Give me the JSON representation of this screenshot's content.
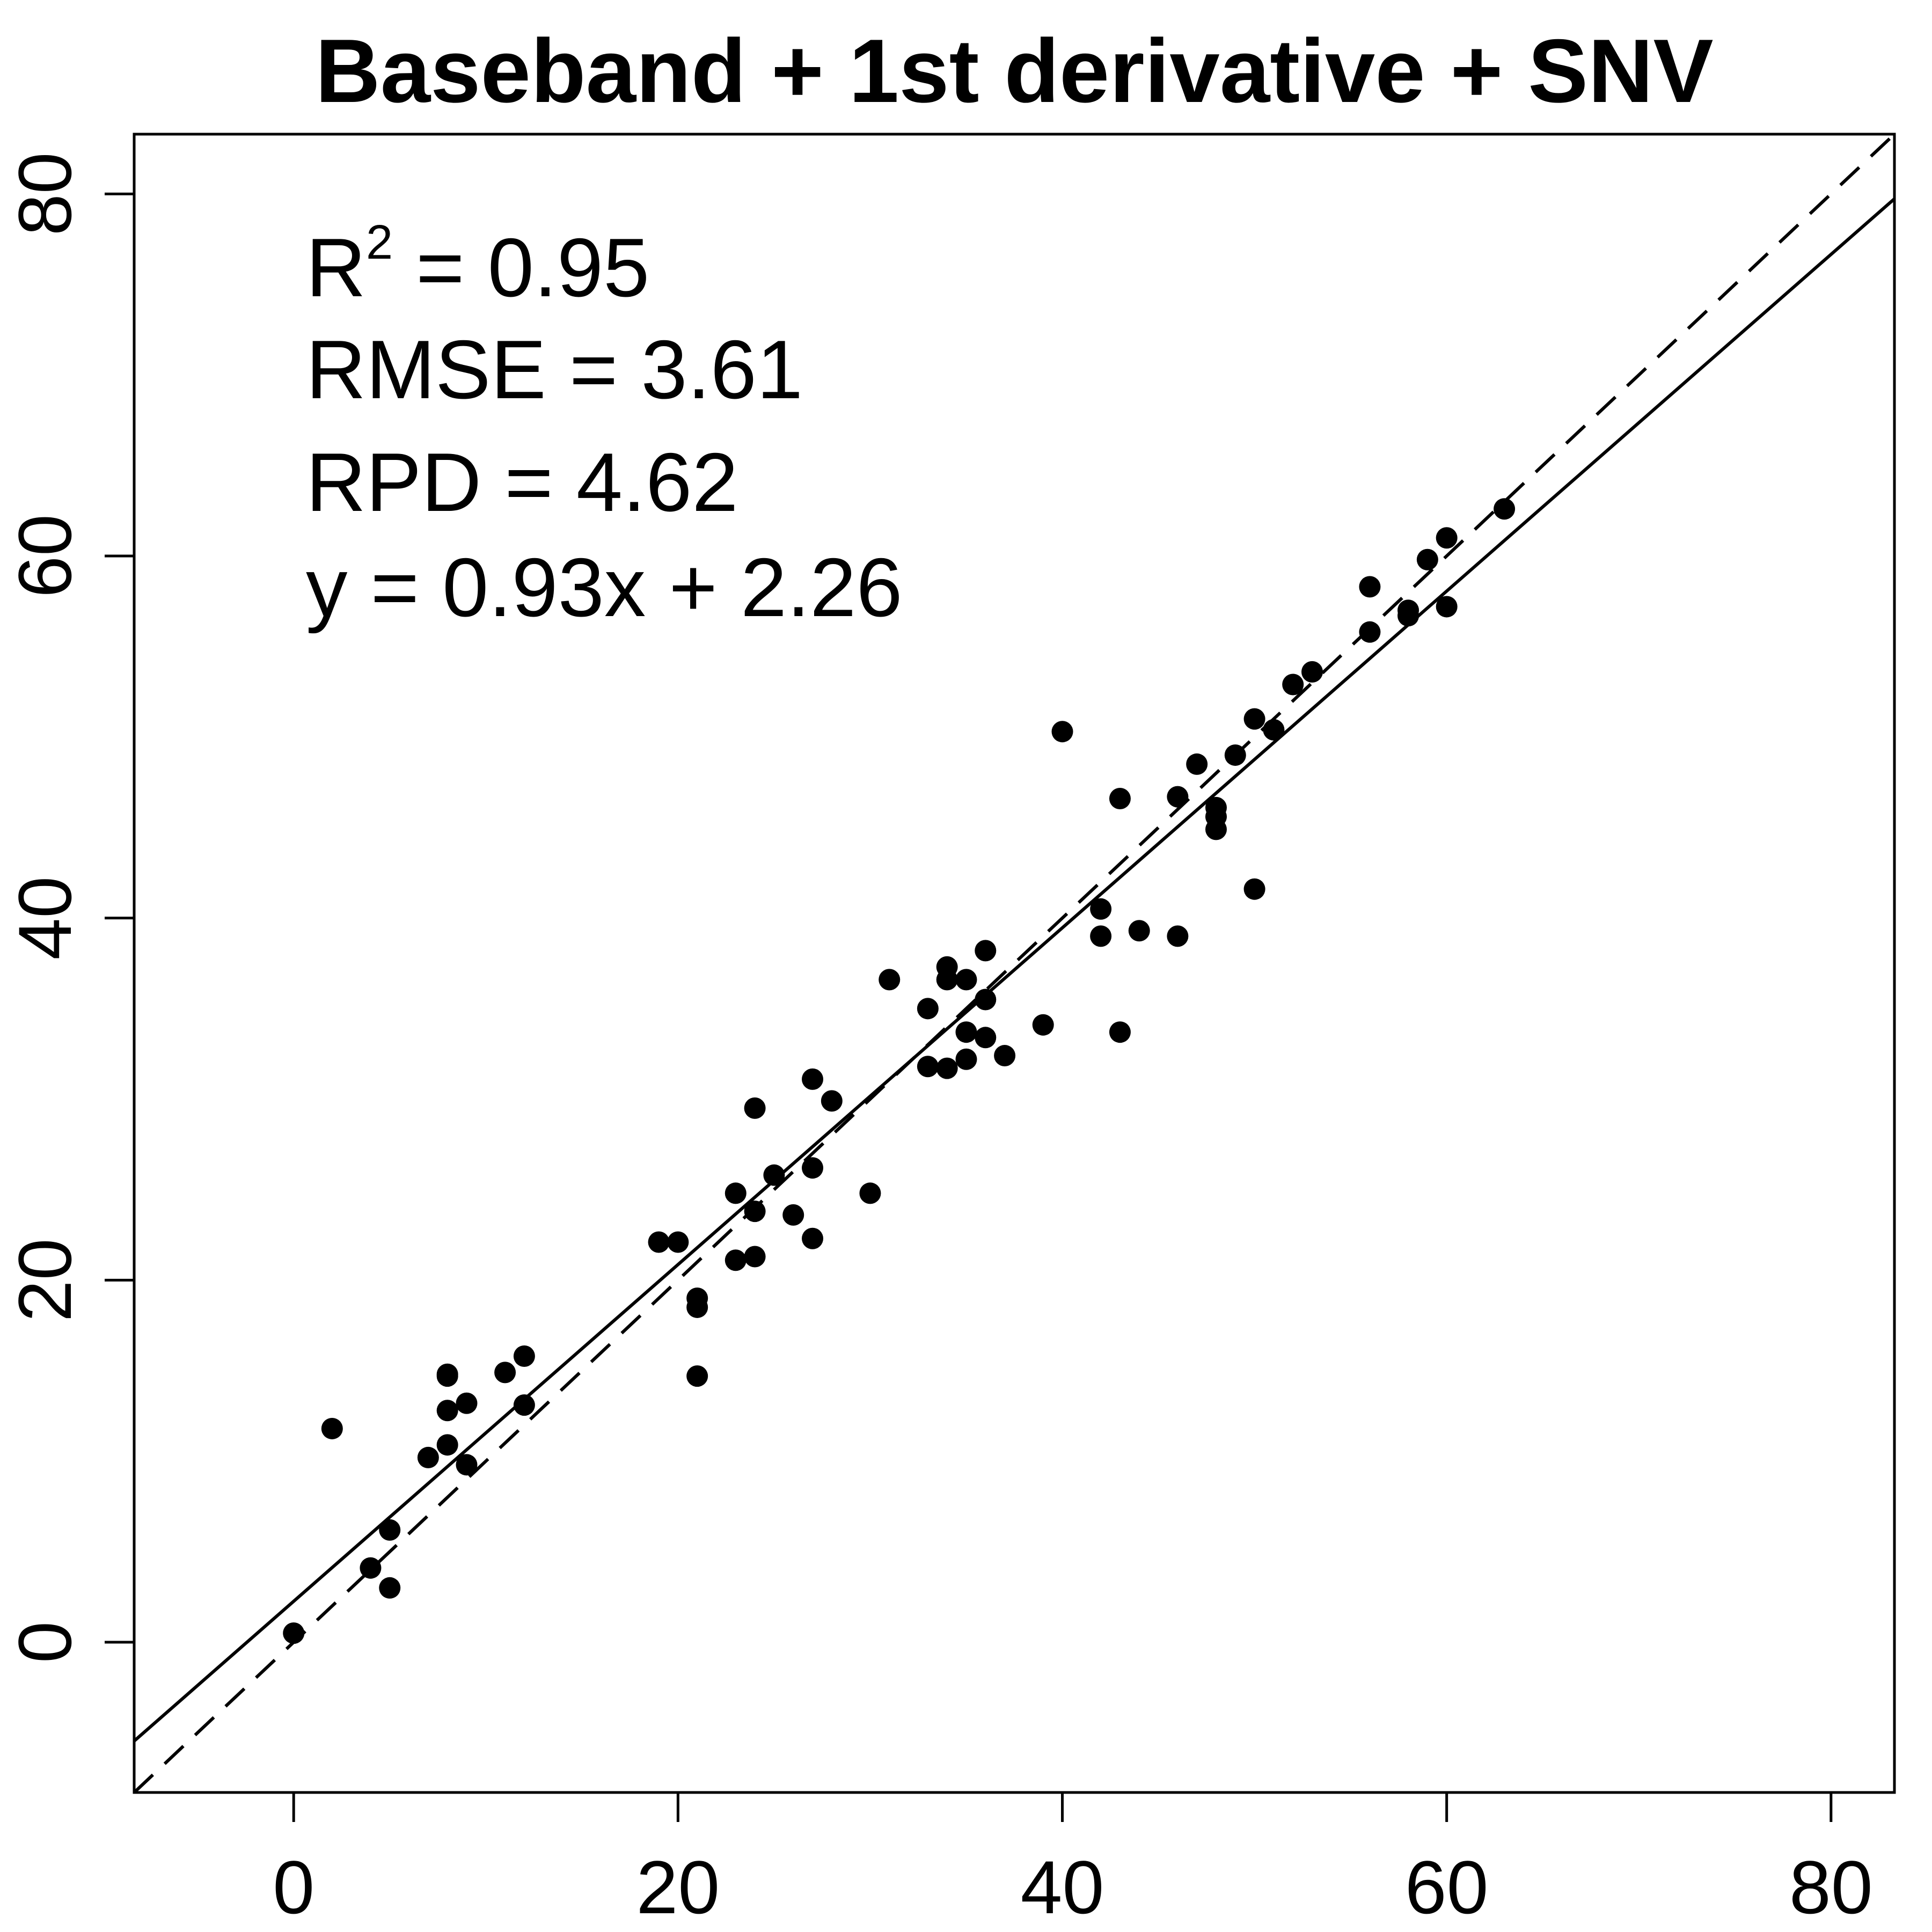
{
  "chart_data": {
    "type": "scatter",
    "title": "Baseband + 1st derivative + SNV",
    "xlabel": "",
    "ylabel": "",
    "xlim": [
      -8.3,
      83.3
    ],
    "ylim": [
      -8.3,
      83.3
    ],
    "x_ticks": [
      0,
      20,
      40,
      60,
      80
    ],
    "y_ticks": [
      0,
      20,
      40,
      60,
      80
    ],
    "x_tick_labels": [
      "0",
      "20",
      "40",
      "60",
      "80"
    ],
    "y_tick_labels": [
      "0",
      "20",
      "40",
      "60",
      "80"
    ],
    "grid": false,
    "legend": "none",
    "annotations": {
      "r2_prefix": "R",
      "r2_sup": "2",
      "r2_rest": " = 0.95",
      "rmse": "RMSE = 3.61",
      "rpd": "RPD = 4.62",
      "equation": "y = 0.93x + 2.26"
    },
    "reference_lines": [
      {
        "kind": "1:1 line",
        "style": "dashed",
        "slope": 1,
        "intercept": 0
      },
      {
        "kind": "fit line",
        "style": "solid",
        "slope": 0.93,
        "intercept": 2.26
      }
    ],
    "series": [
      {
        "x": [
          0,
          2,
          4,
          5,
          5,
          7,
          8,
          8,
          8,
          8,
          9,
          9,
          11,
          12,
          12,
          19,
          20,
          21,
          21,
          21,
          23,
          23,
          24,
          24,
          24,
          25,
          26,
          27,
          27,
          27,
          28,
          30,
          31,
          33,
          33,
          34,
          34,
          34,
          35,
          35,
          35,
          36,
          36,
          36,
          37,
          39,
          40,
          42,
          42,
          43,
          43,
          44,
          46,
          46,
          47,
          48,
          48,
          48,
          49,
          50,
          50,
          51,
          52,
          53,
          56,
          56,
          58,
          58,
          59,
          60,
          60,
          63
        ],
        "y": [
          0.5,
          11.8,
          4.1,
          6.2,
          3,
          10.2,
          14.8,
          12.8,
          10.9,
          14.7,
          9.8,
          13.2,
          14.9,
          15.8,
          13.1,
          22.1,
          22.1,
          19,
          18.5,
          14.7,
          24.8,
          21.1,
          23.8,
          21.3,
          29.5,
          25.8,
          23.6,
          31.1,
          26.2,
          22.3,
          29.9,
          24.8,
          36.6,
          35,
          31.8,
          37.3,
          36.6,
          31.7,
          36.6,
          33.7,
          32.2,
          38.2,
          35.5,
          33.4,
          32.4,
          34.1,
          50.3,
          40.5,
          39,
          46.6,
          33.7,
          39.3,
          46.7,
          39,
          48.5,
          46.1,
          45.6,
          44.9,
          49,
          51,
          41.6,
          50.4,
          52.9,
          53.6,
          58.3,
          55.8,
          57,
          56.7,
          59.8,
          61,
          57.2,
          62.6
        ]
      }
    ]
  }
}
